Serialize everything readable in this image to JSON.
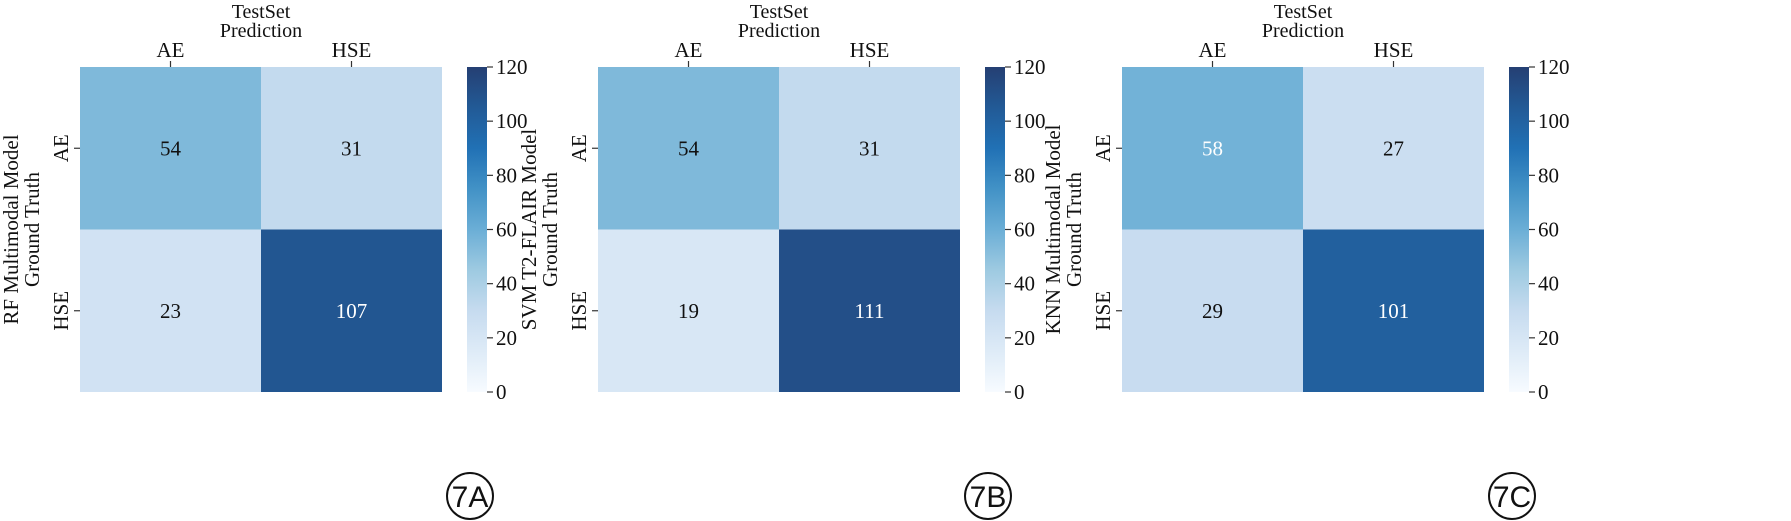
{
  "colorscale": {
    "min": 0,
    "max": 120,
    "ticks": [
      0,
      20,
      40,
      60,
      80,
      100,
      120
    ],
    "stops": [
      {
        "t": 0.0,
        "color": "#f7fbff"
      },
      {
        "t": 0.125,
        "color": "#deebf7"
      },
      {
        "t": 0.25,
        "color": "#c6dbef"
      },
      {
        "t": 0.375,
        "color": "#9ecae1"
      },
      {
        "t": 0.5,
        "color": "#6baed6"
      },
      {
        "t": 0.625,
        "color": "#4292c6"
      },
      {
        "t": 0.75,
        "color": "#2171b5"
      },
      {
        "t": 0.875,
        "color": "#225a96"
      },
      {
        "t": 1.0,
        "color": "#253f73"
      }
    ]
  },
  "chart_data": [
    {
      "type": "heatmap",
      "title": "TestSet",
      "xlabel": "Prediction",
      "ylabel_line1": "RF Multimodal Model",
      "ylabel_line2": "Ground Truth",
      "x_categories": [
        "AE",
        "HSE"
      ],
      "y_categories": [
        "AE",
        "HSE"
      ],
      "values": [
        [
          54,
          31
        ],
        [
          23,
          107
        ]
      ],
      "panel_label": "7A"
    },
    {
      "type": "heatmap",
      "title": "TestSet",
      "xlabel": "Prediction",
      "ylabel_line1": "SVM T2-FLAIR Model",
      "ylabel_line2": "Ground Truth",
      "x_categories": [
        "AE",
        "HSE"
      ],
      "y_categories": [
        "AE",
        "HSE"
      ],
      "values": [
        [
          54,
          31
        ],
        [
          19,
          111
        ]
      ],
      "panel_label": "7B"
    },
    {
      "type": "heatmap",
      "title": "TestSet",
      "xlabel": "Prediction",
      "ylabel_line1": "KNN Multimodal Model",
      "ylabel_line2": "Ground Truth",
      "x_categories": [
        "AE",
        "HSE"
      ],
      "y_categories": [
        "AE",
        "HSE"
      ],
      "values": [
        [
          58,
          27
        ],
        [
          29,
          101
        ]
      ],
      "panel_label": "7C"
    }
  ]
}
